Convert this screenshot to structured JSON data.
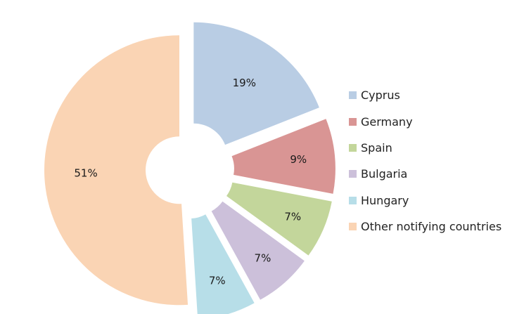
{
  "chart_data": {
    "type": "pie",
    "categories": [
      "Cyprus",
      "Germany",
      "Spain",
      "Bulgaria",
      "Hungary",
      "Other notifying countries"
    ],
    "values": [
      19,
      9,
      7,
      7,
      7,
      51
    ],
    "value_labels": [
      "19%",
      "9%",
      "7%",
      "7%",
      "7%",
      "51%"
    ],
    "colors": [
      "#b9cde4",
      "#d99594",
      "#c3d69b",
      "#ccc0da",
      "#b7dee8",
      "#fad4b4"
    ],
    "exploded": true,
    "donut_hole": true,
    "legend_position": "right"
  }
}
